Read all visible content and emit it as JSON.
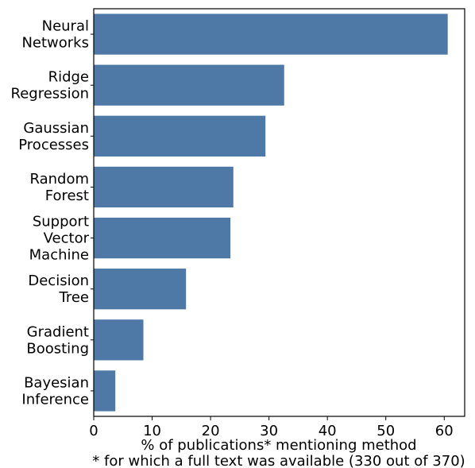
{
  "chart_data": {
    "type": "bar",
    "orientation": "horizontal",
    "categories": [
      [
        "Neural",
        "Networks"
      ],
      [
        "Ridge",
        "Regression"
      ],
      [
        "Gaussian",
        "Processes"
      ],
      [
        "Random",
        "Forest"
      ],
      [
        "Support",
        "Vector",
        "Machine"
      ],
      [
        "Decision",
        "Tree"
      ],
      [
        "Gradient",
        "Boosting"
      ],
      [
        "Bayesian",
        "Inference"
      ]
    ],
    "values": [
      60.6,
      32.6,
      29.4,
      23.9,
      23.4,
      15.8,
      8.5,
      3.7
    ],
    "xlim": [
      0,
      63.5
    ],
    "xticks": [
      0,
      10,
      20,
      30,
      40,
      50,
      60
    ],
    "xlabel": "% of publications* mentioning method",
    "footnote": "* for which a full text was available (330 out of 370)",
    "grid": false,
    "bar_color": "#4e79a7"
  }
}
